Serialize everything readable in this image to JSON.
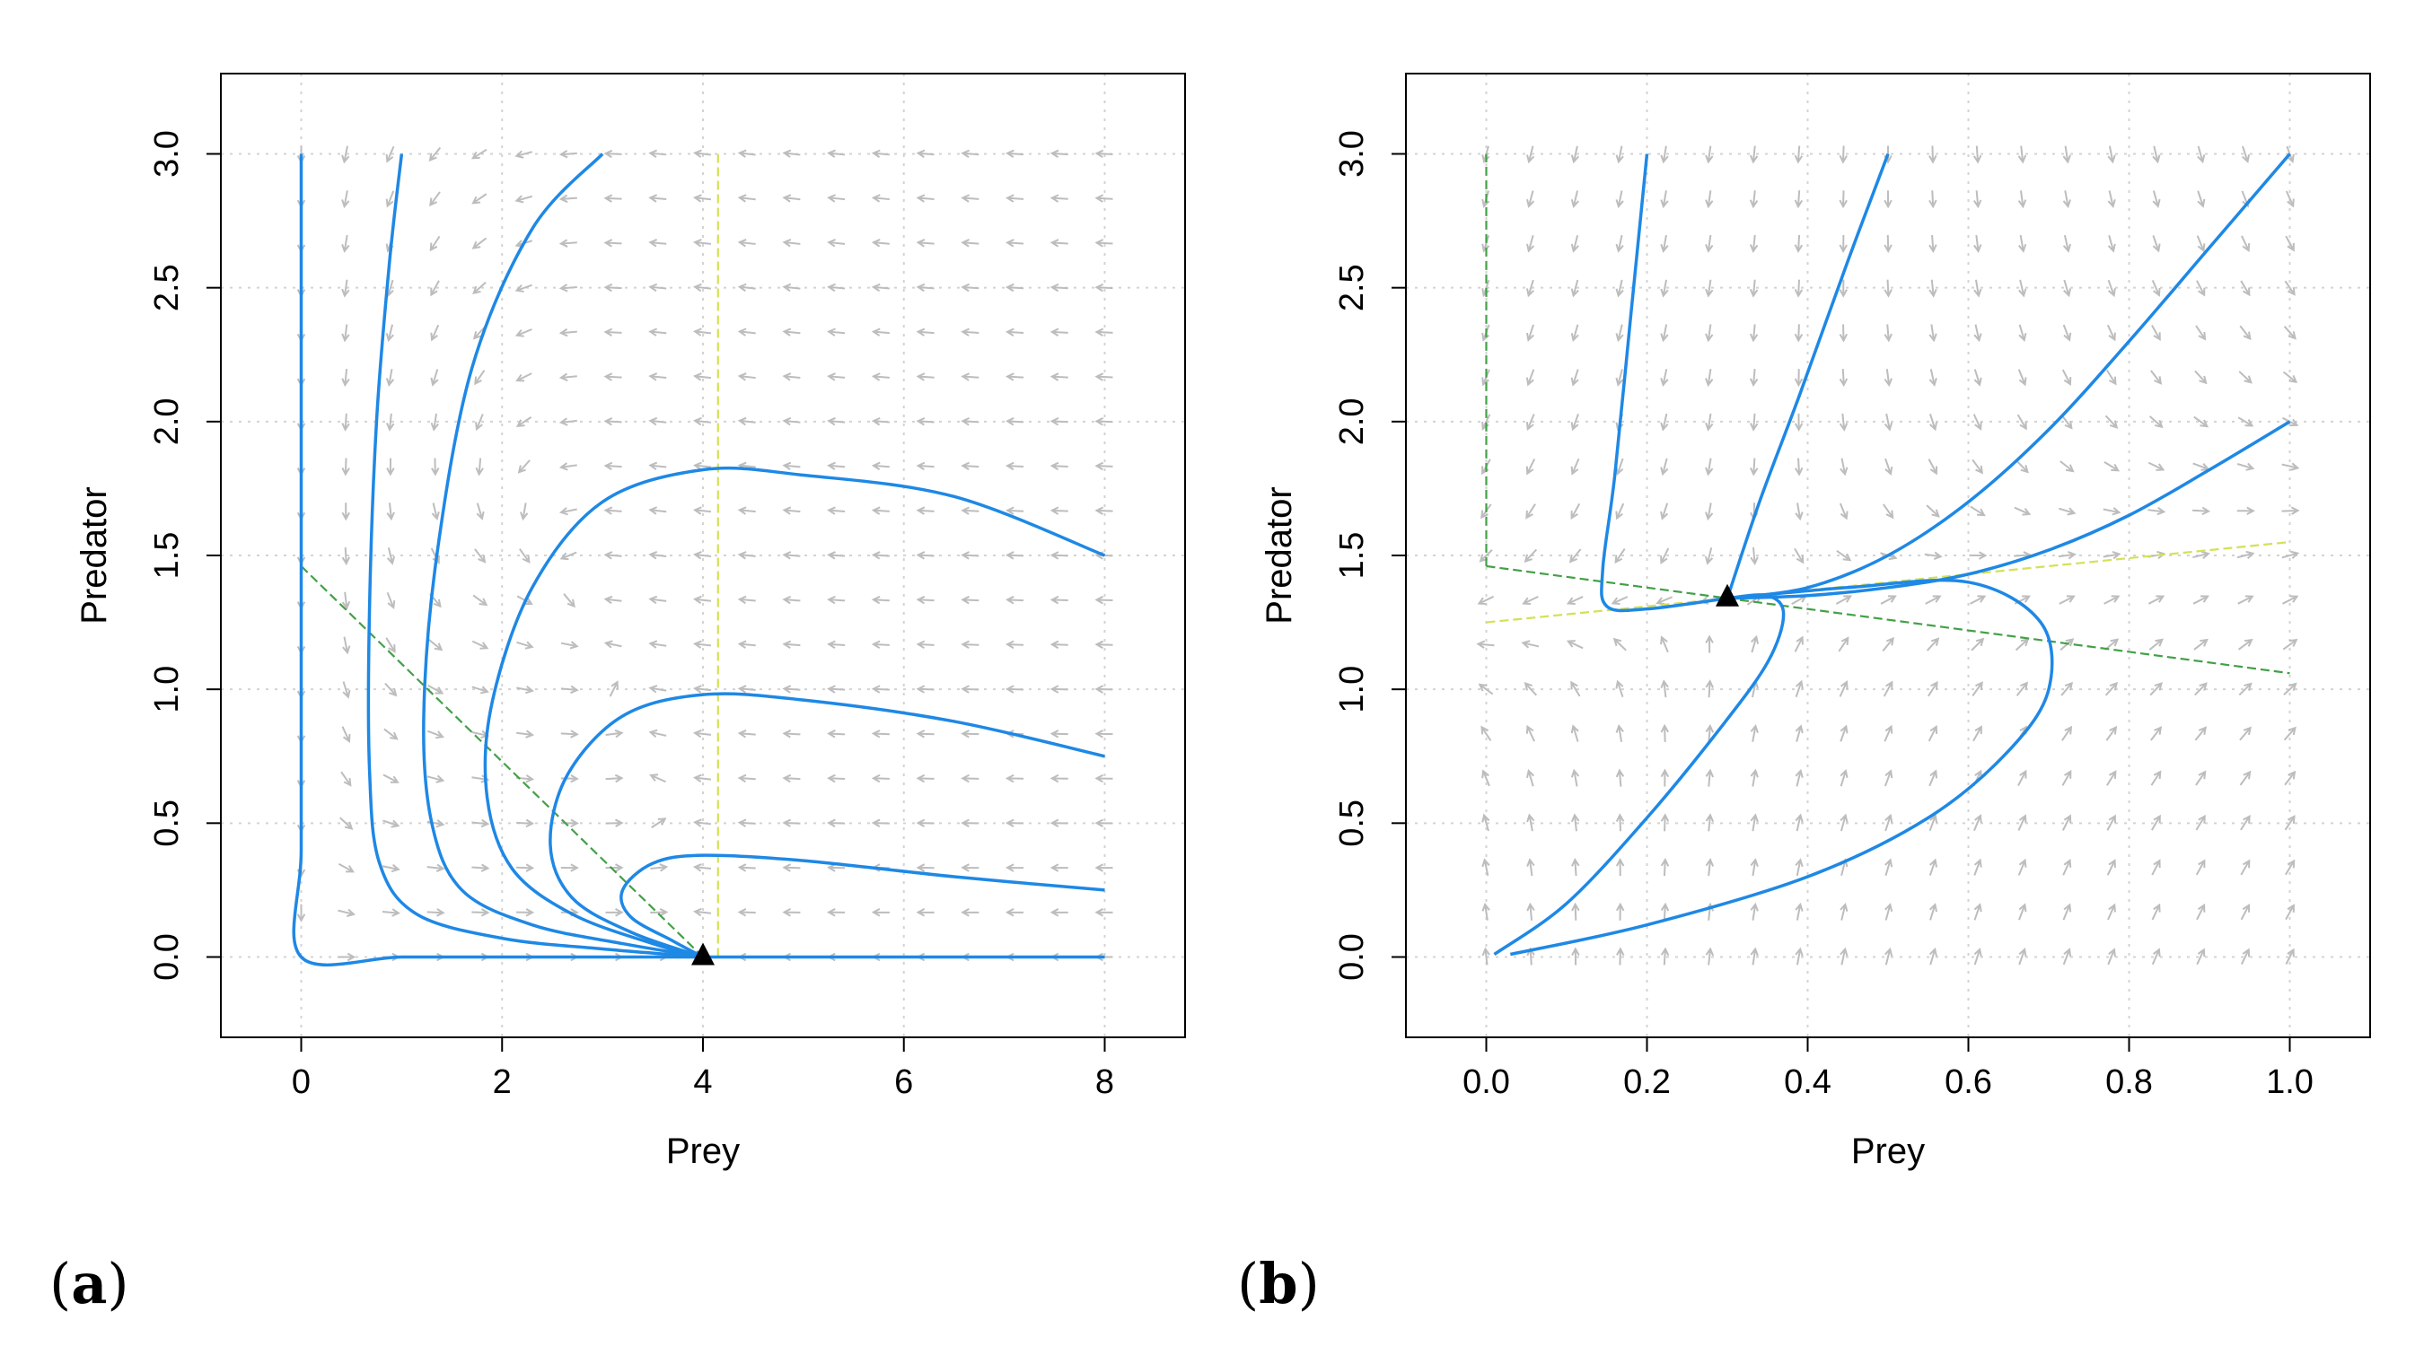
{
  "figure": {
    "panel_labels": [
      {
        "open": "(",
        "letter": "a",
        "close": ")"
      },
      {
        "open": "(",
        "letter": "b",
        "close": ")"
      }
    ]
  },
  "colors": {
    "trajectory": "#1E88E5",
    "arrow": "#BDBDBD",
    "grid": "#D3D3D3",
    "nullcline_prey": "#43A047",
    "nullcline_predator": "#D4E157",
    "equilibrium": "#000000"
  },
  "chart_data": [
    {
      "type": "line",
      "panel": "a",
      "title": "",
      "xlabel": "Prey",
      "ylabel": "Predator",
      "xlim": [
        -0.8,
        8.8
      ],
      "ylim": [
        -0.3,
        3.3
      ],
      "xticks": [
        0,
        2,
        4,
        6,
        8
      ],
      "xtick_labels": [
        "0",
        "2",
        "4",
        "6",
        "8"
      ],
      "yticks": [
        0.0,
        0.5,
        1.0,
        1.5,
        2.0,
        2.5,
        3.0
      ],
      "ytick_labels": [
        "0.0",
        "0.5",
        "1.0",
        "1.5",
        "2.0",
        "2.5",
        "3.0"
      ],
      "grid": true,
      "field": {
        "x0": 0,
        "x1": 8,
        "nx": 19,
        "y0": 0,
        "y1": 3,
        "ny": 19
      },
      "equilibrium": {
        "x": 4,
        "y": 0
      },
      "series": [
        {
          "name": "trajectory-1",
          "points": [
            [
              0,
              3.0
            ],
            [
              0,
              2.0
            ],
            [
              0,
              1.0
            ],
            [
              0,
              0.4
            ],
            [
              0,
              0.0
            ],
            [
              1,
              0.0
            ],
            [
              2,
              0.0
            ],
            [
              3,
              0.0
            ],
            [
              4,
              0.0
            ]
          ]
        },
        {
          "name": "trajectory-2",
          "points": [
            [
              8,
              0.0
            ],
            [
              6,
              0.0
            ],
            [
              4,
              0.0
            ]
          ]
        },
        {
          "name": "trajectory-3",
          "points": [
            [
              1,
              3.0
            ],
            [
              0.88,
              2.6
            ],
            [
              0.75,
              2.0
            ],
            [
              0.68,
              1.3
            ],
            [
              0.68,
              0.7
            ],
            [
              0.78,
              0.35
            ],
            [
              1.15,
              0.16
            ],
            [
              2,
              0.07
            ],
            [
              3,
              0.03
            ],
            [
              4,
              0.0
            ]
          ]
        },
        {
          "name": "trajectory-4",
          "points": [
            [
              3,
              3.0
            ],
            [
              2.3,
              2.72
            ],
            [
              1.7,
              2.2
            ],
            [
              1.35,
              1.5
            ],
            [
              1.22,
              0.9
            ],
            [
              1.3,
              0.5
            ],
            [
              1.6,
              0.25
            ],
            [
              2.3,
              0.12
            ],
            [
              3.2,
              0.05
            ],
            [
              4,
              0.0
            ]
          ]
        },
        {
          "name": "trajectory-5",
          "points": [
            [
              8,
              1.5
            ],
            [
              6.5,
              1.72
            ],
            [
              5,
              1.8
            ],
            [
              4,
              1.82
            ],
            [
              3,
              1.7
            ],
            [
              2.3,
              1.38
            ],
            [
              1.9,
              0.95
            ],
            [
              1.85,
              0.6
            ],
            [
              2.1,
              0.33
            ],
            [
              2.7,
              0.16
            ],
            [
              3.5,
              0.05
            ],
            [
              4,
              0.0
            ]
          ]
        },
        {
          "name": "trajectory-6",
          "points": [
            [
              8,
              0.75
            ],
            [
              6.5,
              0.88
            ],
            [
              5,
              0.96
            ],
            [
              4,
              0.98
            ],
            [
              3.2,
              0.9
            ],
            [
              2.65,
              0.68
            ],
            [
              2.48,
              0.42
            ],
            [
              2.7,
              0.22
            ],
            [
              3.3,
              0.09
            ],
            [
              4,
              0.0
            ]
          ]
        },
        {
          "name": "trajectory-7",
          "points": [
            [
              8,
              0.25
            ],
            [
              6.5,
              0.3
            ],
            [
              5,
              0.36
            ],
            [
              4,
              0.38
            ],
            [
              3.5,
              0.35
            ],
            [
              3.2,
              0.25
            ],
            [
              3.28,
              0.15
            ],
            [
              3.7,
              0.06
            ],
            [
              4,
              0.0
            ]
          ]
        }
      ],
      "nullclines": [
        {
          "name": "prey-nullcline",
          "color_key": "nullcline_prey",
          "points": [
            [
              0,
              1.46
            ],
            [
              4,
              0.0
            ]
          ]
        },
        {
          "name": "predator-nullcline",
          "color_key": "nullcline_predator",
          "points": [
            [
              4.15,
              0.0
            ],
            [
              4.15,
              3.0
            ]
          ]
        },
        {
          "name": "predator-axis-nullcline",
          "color_key": "nullcline_prey",
          "points": [
            [
              0,
              1.46
            ],
            [
              0,
              3.0
            ]
          ]
        }
      ]
    },
    {
      "type": "line",
      "panel": "b",
      "title": "",
      "xlabel": "Prey",
      "ylabel": "Predator",
      "xlim": [
        -0.1,
        1.1
      ],
      "ylim": [
        -0.3,
        3.3
      ],
      "xticks": [
        0.0,
        0.2,
        0.4,
        0.6,
        0.8,
        1.0
      ],
      "xtick_labels": [
        "0.0",
        "0.2",
        "0.4",
        "0.6",
        "0.8",
        "1.0"
      ],
      "yticks": [
        0.0,
        0.5,
        1.0,
        1.5,
        2.0,
        2.5,
        3.0
      ],
      "ytick_labels": [
        "0.0",
        "0.5",
        "1.0",
        "1.5",
        "2.0",
        "2.5",
        "3.0"
      ],
      "grid": true,
      "field": {
        "x0": 0,
        "x1": 1,
        "nx": 19,
        "y0": 0,
        "y1": 3,
        "ny": 19
      },
      "equilibrium": {
        "x": 0.3,
        "y": 1.34
      },
      "series": [
        {
          "name": "trajectory-1",
          "points": [
            [
              0.2,
              3.0
            ],
            [
              0.18,
              2.4
            ],
            [
              0.16,
              1.8
            ],
            [
              0.145,
              1.45
            ],
            [
              0.15,
              1.31
            ],
            [
              0.2,
              1.3
            ],
            [
              0.3,
              1.34
            ]
          ]
        },
        {
          "name": "trajectory-2",
          "points": [
            [
              0.5,
              3.0
            ],
            [
              0.45,
              2.6
            ],
            [
              0.39,
              2.1
            ],
            [
              0.34,
              1.7
            ],
            [
              0.3,
              1.34
            ]
          ]
        },
        {
          "name": "trajectory-3",
          "points": [
            [
              1.0,
              3.0
            ],
            [
              0.9,
              2.65
            ],
            [
              0.8,
              2.3
            ],
            [
              0.7,
              1.97
            ],
            [
              0.6,
              1.7
            ],
            [
              0.5,
              1.5
            ],
            [
              0.4,
              1.38
            ],
            [
              0.3,
              1.34
            ]
          ]
        },
        {
          "name": "trajectory-4",
          "points": [
            [
              1.0,
              2.0
            ],
            [
              0.9,
              1.82
            ],
            [
              0.8,
              1.65
            ],
            [
              0.7,
              1.52
            ],
            [
              0.6,
              1.43
            ],
            [
              0.5,
              1.38
            ],
            [
              0.4,
              1.35
            ],
            [
              0.3,
              1.34
            ]
          ]
        },
        {
          "name": "trajectory-5",
          "points": [
            [
              0.01,
              0.01
            ],
            [
              0.1,
              0.2
            ],
            [
              0.2,
              0.52
            ],
            [
              0.29,
              0.85
            ],
            [
              0.35,
              1.1
            ],
            [
              0.37,
              1.28
            ],
            [
              0.35,
              1.35
            ],
            [
              0.3,
              1.34
            ]
          ]
        },
        {
          "name": "trajectory-6",
          "points": [
            [
              0.03,
              0.01
            ],
            [
              0.2,
              0.12
            ],
            [
              0.4,
              0.3
            ],
            [
              0.55,
              0.52
            ],
            [
              0.65,
              0.77
            ],
            [
              0.7,
              1.0
            ],
            [
              0.69,
              1.25
            ],
            [
              0.6,
              1.4
            ],
            [
              0.45,
              1.38
            ],
            [
              0.3,
              1.34
            ]
          ]
        }
      ],
      "nullclines": [
        {
          "name": "prey-nullcline",
          "color_key": "nullcline_prey",
          "points": [
            [
              0,
              1.46
            ],
            [
              1.0,
              1.06
            ]
          ]
        },
        {
          "name": "predator-nullcline",
          "color_key": "nullcline_predator",
          "points": [
            [
              0,
              1.25
            ],
            [
              1.0,
              1.55
            ]
          ]
        },
        {
          "name": "predator-axis-nullcline",
          "color_key": "nullcline_prey",
          "points": [
            [
              0,
              1.46
            ],
            [
              0,
              3.0
            ]
          ]
        }
      ]
    }
  ]
}
